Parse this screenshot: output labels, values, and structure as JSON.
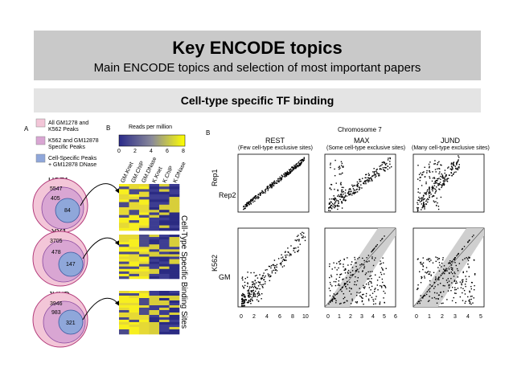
{
  "slide": {
    "title": "Key ENCODE topics",
    "subtitle": "Main ENCODE topics and selection of most important papers",
    "section_title": "Cell-type specific TF binding"
  },
  "figure": {
    "panel_a": {
      "label": "A",
      "legend": [
        "All GM1278 and",
        "K562 Peaks",
        "K562 and GM12878",
        "Specific Peaks",
        "Cell-Specific Peaks",
        "+ GM12878 DNase"
      ],
      "venns": [
        {
          "name": "USF1",
          "outer": "5547",
          "middle": "405",
          "inner": "84"
        },
        {
          "name": "YY1",
          "outer": "3705",
          "middle": "478",
          "inner": "147"
        },
        {
          "name": "JUND",
          "outer": "3946",
          "middle": "983",
          "inner": "321"
        }
      ],
      "colors": {
        "outer": "#f3c6d8",
        "middle": "#d9a6d3",
        "inner": "#8fa7da"
      }
    },
    "panel_b_heatmap": {
      "label": "B",
      "scale_title": "Reads per million",
      "scale_ticks": [
        "0",
        "2",
        "4",
        "6",
        "8"
      ],
      "columns": [
        "GM.Knet",
        "GM.ChIP",
        "GM.DNase",
        "K.Knet",
        "K.ChIP",
        "K.DNase"
      ],
      "side_label": "Cell-Type Specific Binding Sites",
      "colors": {
        "low": "#2a2a8a",
        "high": "#ffff00"
      }
    },
    "panel_b_scatter": {
      "label": "B",
      "title": "Chromosome 7",
      "columns": [
        {
          "name": "REST",
          "desc": "(Few cell-type exclusive sites)"
        },
        {
          "name": "MAX",
          "desc": "(Some cell-type exclusive sites)"
        },
        {
          "name": "JUND",
          "desc": "(Many cell-type exclusive sites)"
        }
      ],
      "row_labels": {
        "top_y": "Rep1",
        "top_x": "Rep2",
        "bottom_y": "K562",
        "bottom_x": "GM"
      },
      "col1_ticks": [
        "0",
        "2",
        "4",
        "6",
        "8",
        "10"
      ],
      "col2_ticks": [
        "0",
        "1",
        "2",
        "3",
        "4",
        "5",
        "6"
      ],
      "col3_ticks": [
        "0",
        "1",
        "2",
        "3",
        "4",
        "5"
      ]
    }
  }
}
